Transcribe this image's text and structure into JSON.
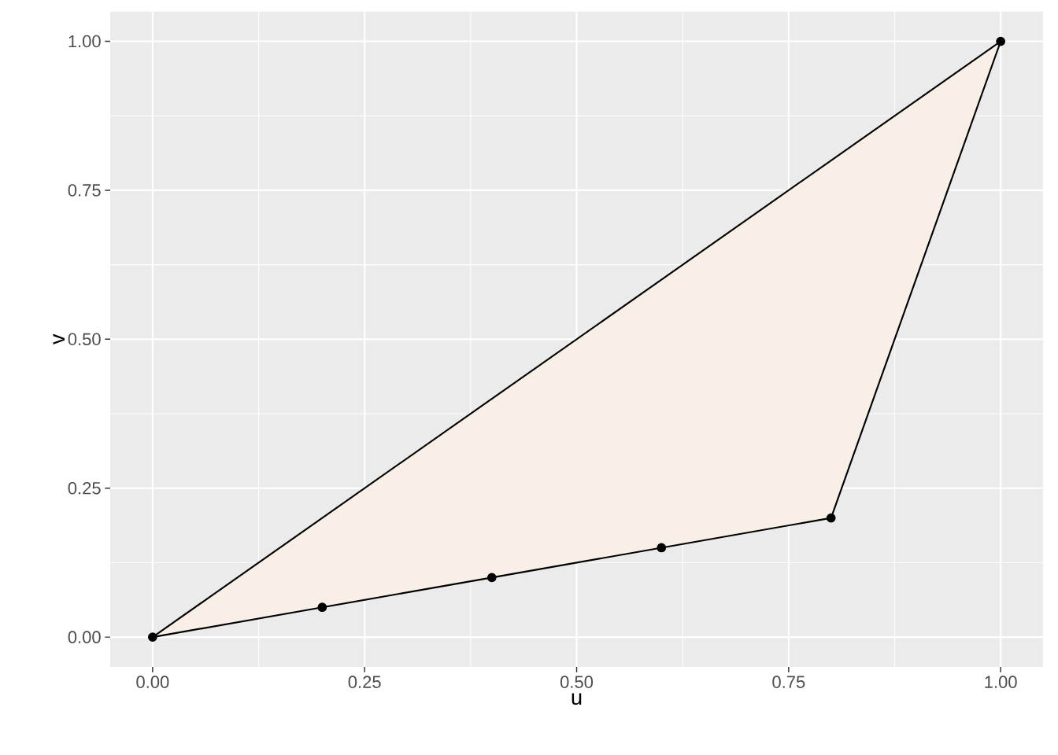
{
  "chart_data": {
    "type": "line",
    "xlabel": "u",
    "ylabel": "v",
    "series": [
      {
        "color": "#000000",
        "x": [
          0,
          0.2,
          0.4,
          0.6,
          0.8,
          1
        ],
        "values": [
          0,
          0.2,
          0.4,
          0.6,
          0.8,
          1
        ],
        "marker": "none",
        "lower": [
          0,
          0.05,
          0.1,
          0.15,
          0.2,
          1
        ],
        "upper": [
          0,
          0.2,
          0.4,
          0.6,
          0.8,
          1
        ]
      },
      {
        "color": "#000000",
        "x": [
          0,
          0.2,
          0.4,
          0.6,
          0.8,
          1
        ],
        "values": [
          0,
          0.05,
          0.1,
          0.15,
          0.2,
          1
        ],
        "marker": "circle"
      }
    ],
    "xlim": [
      -0.05,
      1.05
    ],
    "ylim": [
      -0.05,
      1.05
    ],
    "xticks": [
      {
        "value": 0,
        "label": "0.00"
      },
      {
        "value": 0.25,
        "label": "0.25"
      },
      {
        "value": 0.5,
        "label": "0.50"
      },
      {
        "value": 0.75,
        "label": "0.75"
      },
      {
        "value": 1,
        "label": "1.00"
      }
    ],
    "yticks": [
      {
        "value": 0,
        "label": "0.00"
      },
      {
        "value": 0.25,
        "label": "0.25"
      },
      {
        "value": 0.5,
        "label": "0.50"
      },
      {
        "value": 0.75,
        "label": "0.75"
      },
      {
        "value": 1,
        "label": "1.00"
      }
    ],
    "grid": true
  }
}
